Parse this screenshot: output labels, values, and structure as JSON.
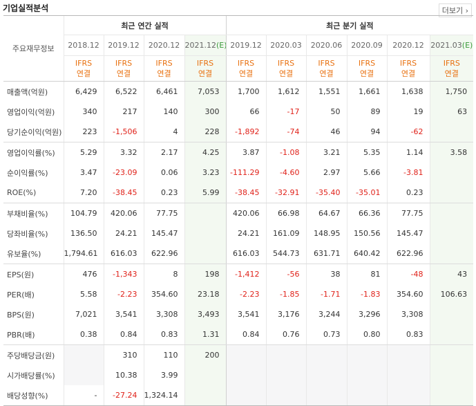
{
  "header": {
    "title": "기업실적분석",
    "more": "더보기"
  },
  "table": {
    "corner": "주요재무정보",
    "groups": [
      {
        "title": "최근 연간 실적",
        "columns": [
          {
            "date": "2018.12",
            "standard": "IFRS",
            "basis": "연결"
          },
          {
            "date": "2019.12",
            "standard": "IFRS",
            "basis": "연결"
          },
          {
            "date": "2020.12",
            "standard": "IFRS",
            "basis": "연결"
          },
          {
            "date": "2021.12",
            "estimate": "(E)",
            "standard": "IFRS",
            "basis": "연결"
          }
        ]
      },
      {
        "title": "최근 분기 실적",
        "columns": [
          {
            "date": "2019.12",
            "standard": "IFRS",
            "basis": "연결"
          },
          {
            "date": "2020.03",
            "standard": "IFRS",
            "basis": "연결"
          },
          {
            "date": "2020.06",
            "standard": "IFRS",
            "basis": "연결"
          },
          {
            "date": "2020.09",
            "standard": "IFRS",
            "basis": "연결"
          },
          {
            "date": "2020.12",
            "standard": "IFRS",
            "basis": "연결"
          },
          {
            "date": "2021.03",
            "estimate": "(E)",
            "standard": "IFRS",
            "basis": "연결"
          }
        ]
      }
    ],
    "rows": [
      {
        "label": "매출액(억원)",
        "values": [
          "6,429",
          "6,522",
          "6,461",
          "7,053",
          "1,700",
          "1,612",
          "1,551",
          "1,661",
          "1,638",
          "1,750"
        ]
      },
      {
        "label": "영업이익(억원)",
        "values": [
          "340",
          "217",
          "140",
          "300",
          "66",
          "-17",
          "50",
          "89",
          "19",
          "63"
        ]
      },
      {
        "label": "당기순이익(억원)",
        "values": [
          "223",
          "-1,506",
          "4",
          "228",
          "-1,892",
          "-74",
          "46",
          "94",
          "-62",
          null
        ]
      },
      {
        "label": "영업이익률(%)",
        "values": [
          "5.29",
          "3.32",
          "2.17",
          "4.25",
          "3.87",
          "-1.08",
          "3.21",
          "5.35",
          "1.14",
          "3.58"
        ]
      },
      {
        "label": "순이익률(%)",
        "values": [
          "3.47",
          "-23.09",
          "0.06",
          "3.23",
          "-111.29",
          "-4.60",
          "2.97",
          "5.66",
          "-3.81",
          null
        ]
      },
      {
        "label": "ROE(%)",
        "values": [
          "7.20",
          "-38.45",
          "0.23",
          "5.99",
          "-38.45",
          "-32.91",
          "-35.40",
          "-35.01",
          "0.23",
          null
        ]
      },
      {
        "label": "부채비율(%)",
        "values": [
          "104.79",
          "420.06",
          "77.75",
          null,
          "420.06",
          "66.98",
          "64.67",
          "66.36",
          "77.75",
          null
        ]
      },
      {
        "label": "당좌비율(%)",
        "values": [
          "136.50",
          "24.21",
          "145.47",
          null,
          "24.21",
          "161.09",
          "148.95",
          "150.56",
          "145.47",
          null
        ]
      },
      {
        "label": "유보율(%)",
        "values": [
          "1,794.61",
          "616.03",
          "622.96",
          null,
          "616.03",
          "544.73",
          "631.71",
          "640.42",
          "622.96",
          null
        ]
      },
      {
        "label": "EPS(원)",
        "values": [
          "476",
          "-1,343",
          "8",
          "198",
          "-1,412",
          "-56",
          "38",
          "81",
          "-48",
          "43"
        ]
      },
      {
        "label": "PER(배)",
        "values": [
          "5.58",
          "-2.23",
          "354.60",
          "23.18",
          "-2.23",
          "-1.85",
          "-1.71",
          "-1.83",
          "354.60",
          "106.63"
        ]
      },
      {
        "label": "BPS(원)",
        "values": [
          "7,021",
          "3,541",
          "3,308",
          "3,493",
          "3,541",
          "3,176",
          "3,244",
          "3,296",
          "3,308",
          null
        ]
      },
      {
        "label": "PBR(배)",
        "values": [
          "0.38",
          "0.84",
          "0.83",
          "1.31",
          "0.84",
          "0.76",
          "0.73",
          "0.80",
          "0.83",
          null
        ]
      },
      {
        "label": "주당배당금(원)",
        "values": [
          null,
          "310",
          "110",
          "200",
          null,
          null,
          null,
          null,
          null,
          null
        ]
      },
      {
        "label": "시가배당률(%)",
        "values": [
          null,
          "10.38",
          "3.99",
          null,
          null,
          null,
          null,
          null,
          null,
          null
        ]
      },
      {
        "label": "배당성향(%)",
        "values": [
          "-",
          "-27.24",
          "1,324.14",
          null,
          null,
          null,
          null,
          null,
          null,
          null
        ]
      }
    ]
  }
}
